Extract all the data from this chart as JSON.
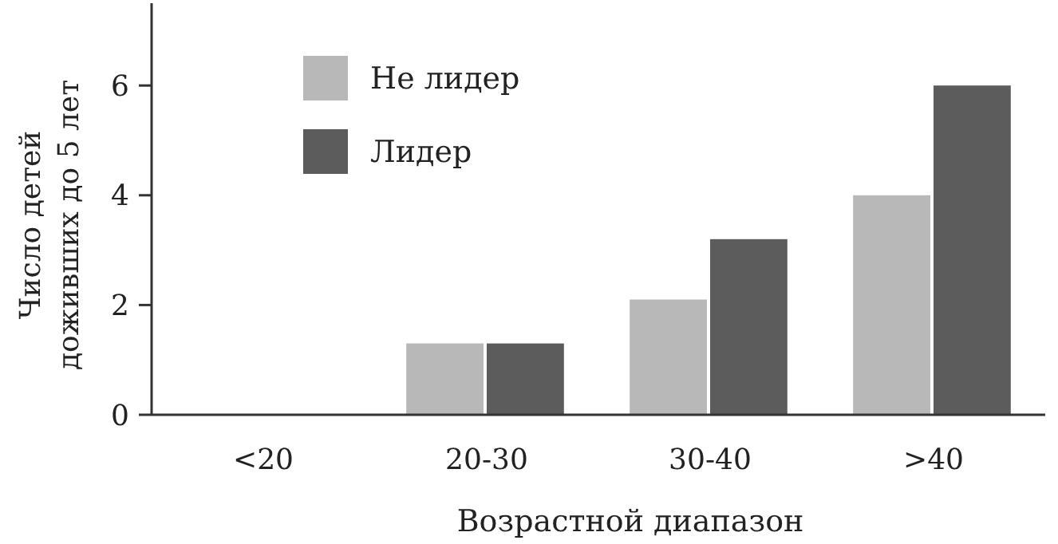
{
  "chart_data": {
    "type": "bar",
    "xlabel": "Возрастной диапазон",
    "ylabel": "Число детей\nдоживших до 5 лет",
    "categories": [
      "<20",
      "20-30",
      "30-40",
      ">40"
    ],
    "series": [
      {
        "name": "Не лидер",
        "color": "#b8b8b8",
        "values": [
          0,
          1.3,
          2.1,
          4.0
        ]
      },
      {
        "name": "Лидер",
        "color": "#5c5c5c",
        "values": [
          0,
          1.3,
          3.2,
          6.0
        ]
      }
    ],
    "ylim": [
      0,
      7.5
    ],
    "yticks": [
      0,
      2,
      4,
      6
    ],
    "legend": "top left",
    "grid": false
  }
}
